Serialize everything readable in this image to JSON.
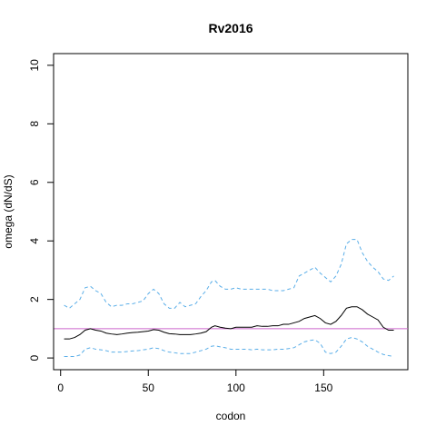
{
  "chart_data": {
    "type": "line",
    "title": "Rv2016",
    "xlabel": "codon",
    "ylabel": "omega (dN/dS)",
    "xlim": [
      -4,
      198
    ],
    "ylim": [
      -0.4,
      10.4
    ],
    "xticks": [
      0,
      50,
      100,
      150
    ],
    "yticks": [
      0,
      2,
      4,
      6,
      8,
      10
    ],
    "reference_line": {
      "y": 1,
      "color": "#cc66cc"
    },
    "series": [
      {
        "role": "estimate",
        "color": "#000000",
        "dash": "solid",
        "x": [
          2,
          5,
          8,
          11,
          14,
          17,
          20,
          23,
          26,
          29,
          32,
          35,
          38,
          41,
          44,
          47,
          50,
          53,
          56,
          59,
          62,
          65,
          68,
          71,
          74,
          77,
          80,
          83,
          86,
          88,
          91,
          94,
          97,
          100,
          103,
          106,
          109,
          112,
          115,
          118,
          121,
          124,
          127,
          130,
          133,
          136,
          139,
          142,
          145,
          148,
          151,
          154,
          157,
          160,
          163,
          166,
          169,
          172,
          175,
          178,
          181,
          184,
          187,
          190
        ],
        "y": [
          0.65,
          0.65,
          0.7,
          0.8,
          0.95,
          1.0,
          0.95,
          0.92,
          0.85,
          0.82,
          0.8,
          0.82,
          0.85,
          0.87,
          0.88,
          0.9,
          0.92,
          0.97,
          0.95,
          0.88,
          0.83,
          0.82,
          0.8,
          0.8,
          0.8,
          0.82,
          0.85,
          0.9,
          1.05,
          1.1,
          1.05,
          1.02,
          1.0,
          1.05,
          1.05,
          1.05,
          1.05,
          1.1,
          1.08,
          1.08,
          1.1,
          1.1,
          1.15,
          1.15,
          1.2,
          1.25,
          1.35,
          1.4,
          1.45,
          1.35,
          1.2,
          1.15,
          1.25,
          1.45,
          1.7,
          1.75,
          1.75,
          1.65,
          1.5,
          1.4,
          1.3,
          1.05,
          0.95,
          0.95
        ]
      },
      {
        "role": "upper bound",
        "color": "#5aaee8",
        "dash": "dashed",
        "x": [
          2,
          5,
          8,
          11,
          14,
          17,
          20,
          23,
          26,
          29,
          32,
          35,
          38,
          41,
          44,
          47,
          50,
          53,
          56,
          59,
          62,
          65,
          68,
          71,
          74,
          77,
          80,
          83,
          86,
          88,
          91,
          94,
          97,
          100,
          103,
          106,
          109,
          112,
          115,
          118,
          121,
          124,
          127,
          130,
          133,
          136,
          139,
          142,
          145,
          148,
          151,
          154,
          157,
          160,
          163,
          166,
          169,
          172,
          175,
          178,
          181,
          184,
          187,
          190
        ],
        "y": [
          1.8,
          1.7,
          1.85,
          2.0,
          2.4,
          2.45,
          2.3,
          2.2,
          1.9,
          1.75,
          1.8,
          1.8,
          1.85,
          1.85,
          1.9,
          1.95,
          2.2,
          2.35,
          2.2,
          1.85,
          1.7,
          1.7,
          1.9,
          1.75,
          1.8,
          1.85,
          2.1,
          2.3,
          2.6,
          2.65,
          2.45,
          2.35,
          2.35,
          2.4,
          2.35,
          2.35,
          2.35,
          2.35,
          2.35,
          2.35,
          2.3,
          2.3,
          2.3,
          2.35,
          2.4,
          2.8,
          2.9,
          3.0,
          3.1,
          2.9,
          2.75,
          2.6,
          2.8,
          3.2,
          3.9,
          4.05,
          4.05,
          3.6,
          3.3,
          3.1,
          2.95,
          2.7,
          2.65,
          2.8
        ]
      },
      {
        "role": "lower bound",
        "color": "#5aaee8",
        "dash": "dashed",
        "x": [
          2,
          5,
          8,
          11,
          14,
          17,
          20,
          23,
          26,
          29,
          32,
          35,
          38,
          41,
          44,
          47,
          50,
          53,
          56,
          59,
          62,
          65,
          68,
          71,
          74,
          77,
          80,
          83,
          86,
          88,
          91,
          94,
          97,
          100,
          103,
          106,
          109,
          112,
          115,
          118,
          121,
          124,
          127,
          130,
          133,
          136,
          139,
          142,
          145,
          148,
          151,
          154,
          157,
          160,
          163,
          166,
          169,
          172,
          175,
          178,
          181,
          184,
          187,
          190
        ],
        "y": [
          0.05,
          0.05,
          0.05,
          0.1,
          0.3,
          0.35,
          0.3,
          0.28,
          0.25,
          0.2,
          0.2,
          0.2,
          0.22,
          0.24,
          0.25,
          0.28,
          0.3,
          0.35,
          0.32,
          0.25,
          0.2,
          0.18,
          0.15,
          0.15,
          0.15,
          0.2,
          0.25,
          0.3,
          0.4,
          0.42,
          0.38,
          0.35,
          0.3,
          0.3,
          0.3,
          0.3,
          0.28,
          0.3,
          0.28,
          0.28,
          0.28,
          0.3,
          0.3,
          0.32,
          0.35,
          0.45,
          0.55,
          0.6,
          0.62,
          0.5,
          0.2,
          0.15,
          0.2,
          0.4,
          0.65,
          0.7,
          0.65,
          0.55,
          0.4,
          0.3,
          0.2,
          0.12,
          0.08,
          0.05
        ]
      }
    ]
  }
}
